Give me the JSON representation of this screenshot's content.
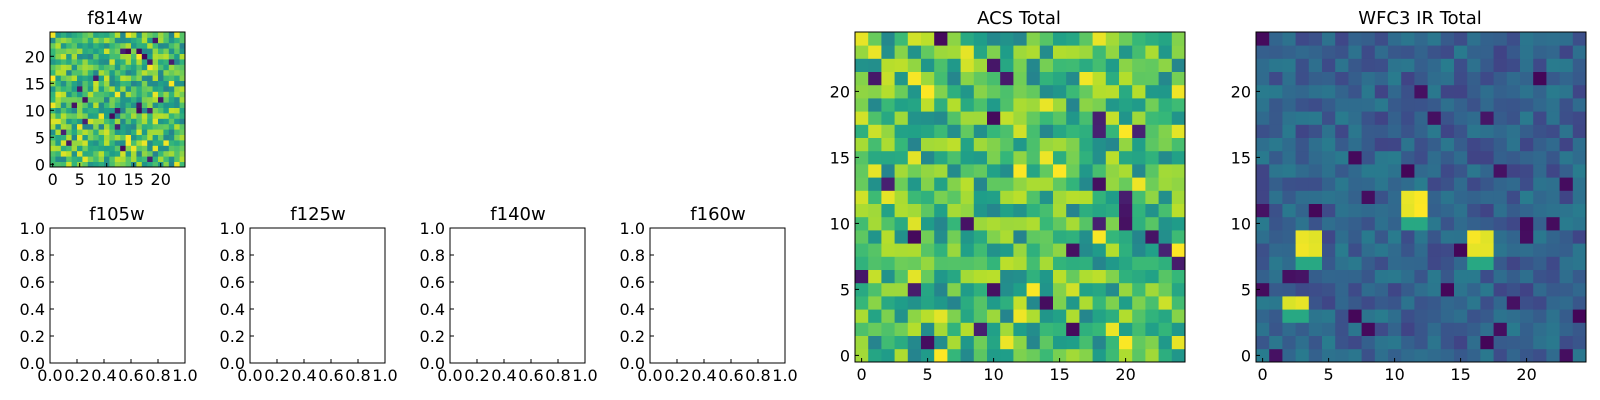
{
  "colormap": "viridis",
  "chart_data": [
    {
      "type": "heatmap",
      "title": "f814w",
      "grid_size": [
        25,
        25
      ],
      "value_range": [
        0,
        1
      ],
      "xlim": [
        -0.5,
        24.5
      ],
      "ylim": [
        -0.5,
        24.5
      ],
      "xticks": [
        0,
        5,
        10,
        15,
        20
      ],
      "yticks": [
        0,
        5,
        10,
        15,
        20
      ],
      "xtick_labels": [
        "0",
        "5",
        "10",
        "15",
        "20"
      ],
      "ytick_labels": [
        "0",
        "5",
        "10",
        "15",
        "20"
      ],
      "pattern": "noise",
      "seed": 11
    },
    {
      "type": "empty",
      "title": "f105w",
      "xlim": [
        0,
        1
      ],
      "ylim": [
        0,
        1
      ],
      "xtick_labels": [
        "0.0",
        "0.2",
        "0.4",
        "0.6",
        "0.8",
        "1.0"
      ],
      "ytick_labels": [
        "0.0",
        "0.2",
        "0.4",
        "0.6",
        "0.8",
        "1.0"
      ]
    },
    {
      "type": "empty",
      "title": "f125w",
      "xlim": [
        0,
        1
      ],
      "ylim": [
        0,
        1
      ],
      "xtick_labels": [
        "0.0",
        "0.2",
        "0.4",
        "0.6",
        "0.8",
        "1.0"
      ],
      "ytick_labels": [
        "0.0",
        "0.2",
        "0.4",
        "0.6",
        "0.8",
        "1.0"
      ]
    },
    {
      "type": "empty",
      "title": "f140w",
      "xlim": [
        0,
        1
      ],
      "ylim": [
        0,
        1
      ],
      "xtick_labels": [
        "0.0",
        "0.2",
        "0.4",
        "0.6",
        "0.8",
        "1.0"
      ],
      "ytick_labels": [
        "0.0",
        "0.2",
        "0.4",
        "0.6",
        "0.8",
        "1.0"
      ]
    },
    {
      "type": "empty",
      "title": "f160w",
      "xlim": [
        0,
        1
      ],
      "ylim": [
        0,
        1
      ],
      "xtick_labels": [
        "0.0",
        "0.2",
        "0.4",
        "0.6",
        "0.8",
        "1.0"
      ],
      "ytick_labels": [
        "0.0",
        "0.2",
        "0.4",
        "0.6",
        "0.8",
        "1.0"
      ]
    },
    {
      "type": "heatmap",
      "title": "ACS Total",
      "grid_size": [
        25,
        25
      ],
      "value_range": [
        0,
        1
      ],
      "xlim": [
        -0.5,
        24.5
      ],
      "ylim": [
        -0.5,
        24.5
      ],
      "xticks": [
        0,
        5,
        10,
        15,
        20
      ],
      "yticks": [
        0,
        5,
        10,
        15,
        20
      ],
      "xtick_labels": [
        "0",
        "5",
        "10",
        "15",
        "20"
      ],
      "ytick_labels": [
        "0",
        "5",
        "10",
        "15",
        "20"
      ],
      "pattern": "noise",
      "seed": 23
    },
    {
      "type": "heatmap",
      "title": "WFC3 IR Total",
      "grid_size": [
        25,
        25
      ],
      "value_range": [
        0,
        1
      ],
      "xlim": [
        -0.5,
        24.5
      ],
      "ylim": [
        -0.5,
        24.5
      ],
      "xticks": [
        0,
        5,
        10,
        15,
        20
      ],
      "yticks": [
        0,
        5,
        10,
        15,
        20
      ],
      "xtick_labels": [
        "0",
        "5",
        "10",
        "15",
        "20"
      ],
      "ytick_labels": [
        "0",
        "5",
        "10",
        "15",
        "20"
      ],
      "pattern": "sources",
      "seed": 37,
      "bright_sources": [
        {
          "x": 2,
          "y": 4,
          "w": 2,
          "h": 1
        },
        {
          "x": 3,
          "y": 8,
          "w": 2,
          "h": 2
        },
        {
          "x": 11,
          "y": 11,
          "w": 2,
          "h": 2
        },
        {
          "x": 16,
          "y": 8,
          "w": 2,
          "h": 2
        }
      ]
    }
  ]
}
